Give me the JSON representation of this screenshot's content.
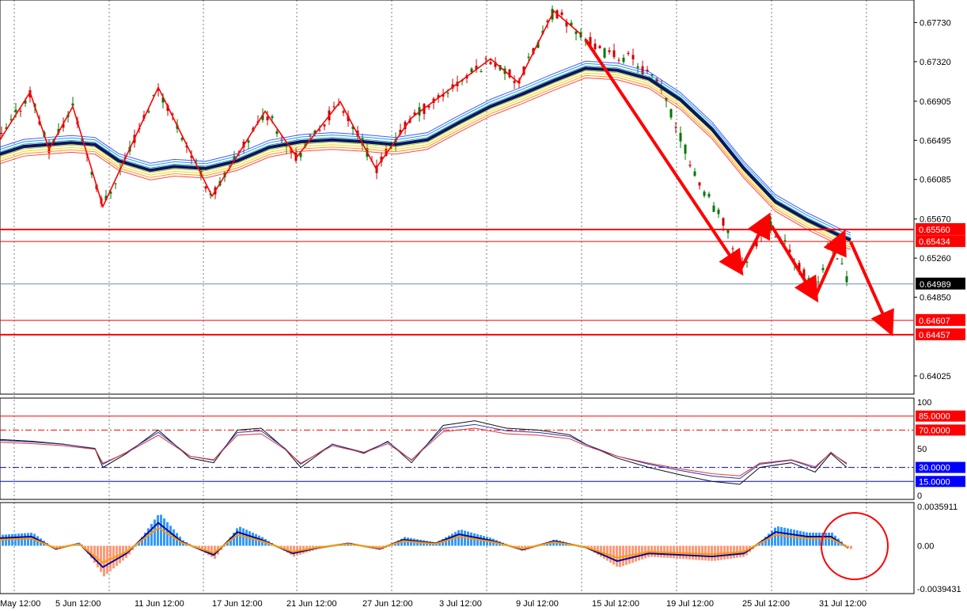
{
  "chart_data": [
    {
      "type": "candlestick",
      "panel": "price",
      "ylim": [
        0.639,
        0.679
      ],
      "y_ticks": [
        "0.67730",
        "0.67320",
        "0.66905",
        "0.66495",
        "0.66085",
        "0.65670",
        "0.65260",
        "0.64850",
        "0.64025"
      ],
      "current_price": "0.64989",
      "levels": [
        {
          "label": "0.65560",
          "value": 0.6556,
          "color": "#ff0000"
        },
        {
          "label": "0.65434",
          "value": 0.65434,
          "color": "#ff0000"
        },
        {
          "label": "0.64607",
          "value": 0.64607,
          "color": "#ff0000"
        },
        {
          "label": "0.64457",
          "value": 0.64457,
          "color": "#ff0000"
        }
      ],
      "zigzag_points": [
        [
          0,
          0.665
        ],
        [
          38,
          0.67
        ],
        [
          62,
          0.664
        ],
        [
          92,
          0.6685
        ],
        [
          130,
          0.658
        ],
        [
          200,
          0.6705
        ],
        [
          268,
          0.6591
        ],
        [
          335,
          0.668
        ],
        [
          375,
          0.6632
        ],
        [
          430,
          0.669
        ],
        [
          475,
          0.662
        ],
        [
          520,
          0.6673
        ],
        [
          620,
          0.6735
        ],
        [
          655,
          0.671
        ],
        [
          700,
          0.6785
        ],
        [
          735,
          0.676
        ]
      ],
      "arrows": [
        {
          "from": [
            740,
            0.6755
          ],
          "to": [
            935,
            0.6513
          ]
        },
        {
          "from": [
            935,
            0.6513
          ],
          "to": [
            970,
            0.6568
          ]
        },
        {
          "from": [
            975,
            0.656
          ],
          "to": [
            1030,
            0.6485
          ]
        },
        {
          "from": [
            1030,
            0.6485
          ],
          "to": [
            1065,
            0.655
          ]
        },
        {
          "from": [
            1075,
            0.6543
          ],
          "to": [
            1125,
            0.645
          ]
        }
      ],
      "moving_average_points": [
        [
          0,
          0.6635
        ],
        [
          30,
          0.6643
        ],
        [
          60,
          0.6645
        ],
        [
          90,
          0.6647
        ],
        [
          120,
          0.6645
        ],
        [
          150,
          0.6628
        ],
        [
          190,
          0.6618
        ],
        [
          220,
          0.6622
        ],
        [
          260,
          0.662
        ],
        [
          300,
          0.6628
        ],
        [
          340,
          0.6642
        ],
        [
          380,
          0.6648
        ],
        [
          420,
          0.665
        ],
        [
          460,
          0.6648
        ],
        [
          500,
          0.6645
        ],
        [
          540,
          0.665
        ],
        [
          580,
          0.6668
        ],
        [
          620,
          0.6685
        ],
        [
          660,
          0.6698
        ],
        [
          700,
          0.6712
        ],
        [
          740,
          0.6725
        ],
        [
          780,
          0.6723
        ],
        [
          820,
          0.6714
        ],
        [
          860,
          0.6692
        ],
        [
          900,
          0.6661
        ],
        [
          940,
          0.662
        ],
        [
          980,
          0.6585
        ],
        [
          1020,
          0.6566
        ],
        [
          1060,
          0.655
        ],
        [
          1075,
          0.6545
        ]
      ],
      "x_labels": [
        "May 12:00",
        "5 Jun 12:00",
        "11 Jun 12:00",
        "17 Jun 12:00",
        "21 Jun 12:00",
        "27 Jun 12:00",
        "3 Jul 12:00",
        "9 Jul 12:00",
        "15 Jul 12:00",
        "19 Jul 12:00",
        "25 Jul 12:00",
        "31 Jul 12:00"
      ]
    },
    {
      "type": "line",
      "panel": "oscillator",
      "ylim": [
        0,
        100
      ],
      "y_ticks": [
        "100",
        "50",
        "0"
      ],
      "levels": [
        {
          "label": "85.0000",
          "value": 85,
          "color": "#ff0000",
          "style": "solid"
        },
        {
          "label": "70.0000",
          "value": 70,
          "color": "#ff0000",
          "style": "dashdot"
        },
        {
          "label": "30.0000",
          "value": 30,
          "color": "#0000ff",
          "style": "dashdot"
        },
        {
          "label": "15.0000",
          "value": 15,
          "color": "#0000ff",
          "style": "solid"
        }
      ],
      "series_points": [
        [
          0,
          60
        ],
        [
          40,
          58
        ],
        [
          80,
          55
        ],
        [
          120,
          50
        ],
        [
          130,
          30
        ],
        [
          160,
          45
        ],
        [
          200,
          70
        ],
        [
          240,
          40
        ],
        [
          270,
          35
        ],
        [
          300,
          70
        ],
        [
          330,
          72
        ],
        [
          360,
          50
        ],
        [
          380,
          30
        ],
        [
          420,
          55
        ],
        [
          460,
          45
        ],
        [
          490,
          58
        ],
        [
          520,
          35
        ],
        [
          560,
          75
        ],
        [
          600,
          80
        ],
        [
          640,
          72
        ],
        [
          680,
          70
        ],
        [
          720,
          65
        ],
        [
          740,
          55
        ],
        [
          780,
          40
        ],
        [
          820,
          30
        ],
        [
          860,
          22
        ],
        [
          900,
          15
        ],
        [
          935,
          12
        ],
        [
          960,
          30
        ],
        [
          1000,
          35
        ],
        [
          1030,
          25
        ],
        [
          1050,
          45
        ],
        [
          1070,
          30
        ]
      ]
    },
    {
      "type": "bar",
      "panel": "macd",
      "ylim": [
        -0.0039431,
        0.0035911
      ],
      "y_ticks": [
        "0.0035911",
        "0.00",
        "-0.0039431"
      ],
      "histogram_points": [
        [
          0,
          0.001
        ],
        [
          40,
          0.0012
        ],
        [
          70,
          -0.0004
        ],
        [
          100,
          0.0003
        ],
        [
          130,
          -0.0028
        ],
        [
          160,
          -0.001
        ],
        [
          200,
          0.003
        ],
        [
          230,
          0.0005
        ],
        [
          270,
          -0.0012
        ],
        [
          300,
          0.0018
        ],
        [
          330,
          0.0008
        ],
        [
          370,
          -0.001
        ],
        [
          400,
          -0.0003
        ],
        [
          440,
          0.0003
        ],
        [
          480,
          -0.0004
        ],
        [
          510,
          0.0008
        ],
        [
          550,
          0.0003
        ],
        [
          580,
          0.0015
        ],
        [
          620,
          0.0007
        ],
        [
          660,
          -0.0005
        ],
        [
          700,
          0.0006
        ],
        [
          740,
          -0.0002
        ],
        [
          780,
          -0.002
        ],
        [
          820,
          -0.001
        ],
        [
          860,
          -0.0012
        ],
        [
          900,
          -0.0014
        ],
        [
          940,
          -0.001
        ],
        [
          980,
          0.0018
        ],
        [
          1020,
          0.0012
        ],
        [
          1050,
          0.0012
        ],
        [
          1072,
          -0.0003
        ]
      ]
    }
  ]
}
